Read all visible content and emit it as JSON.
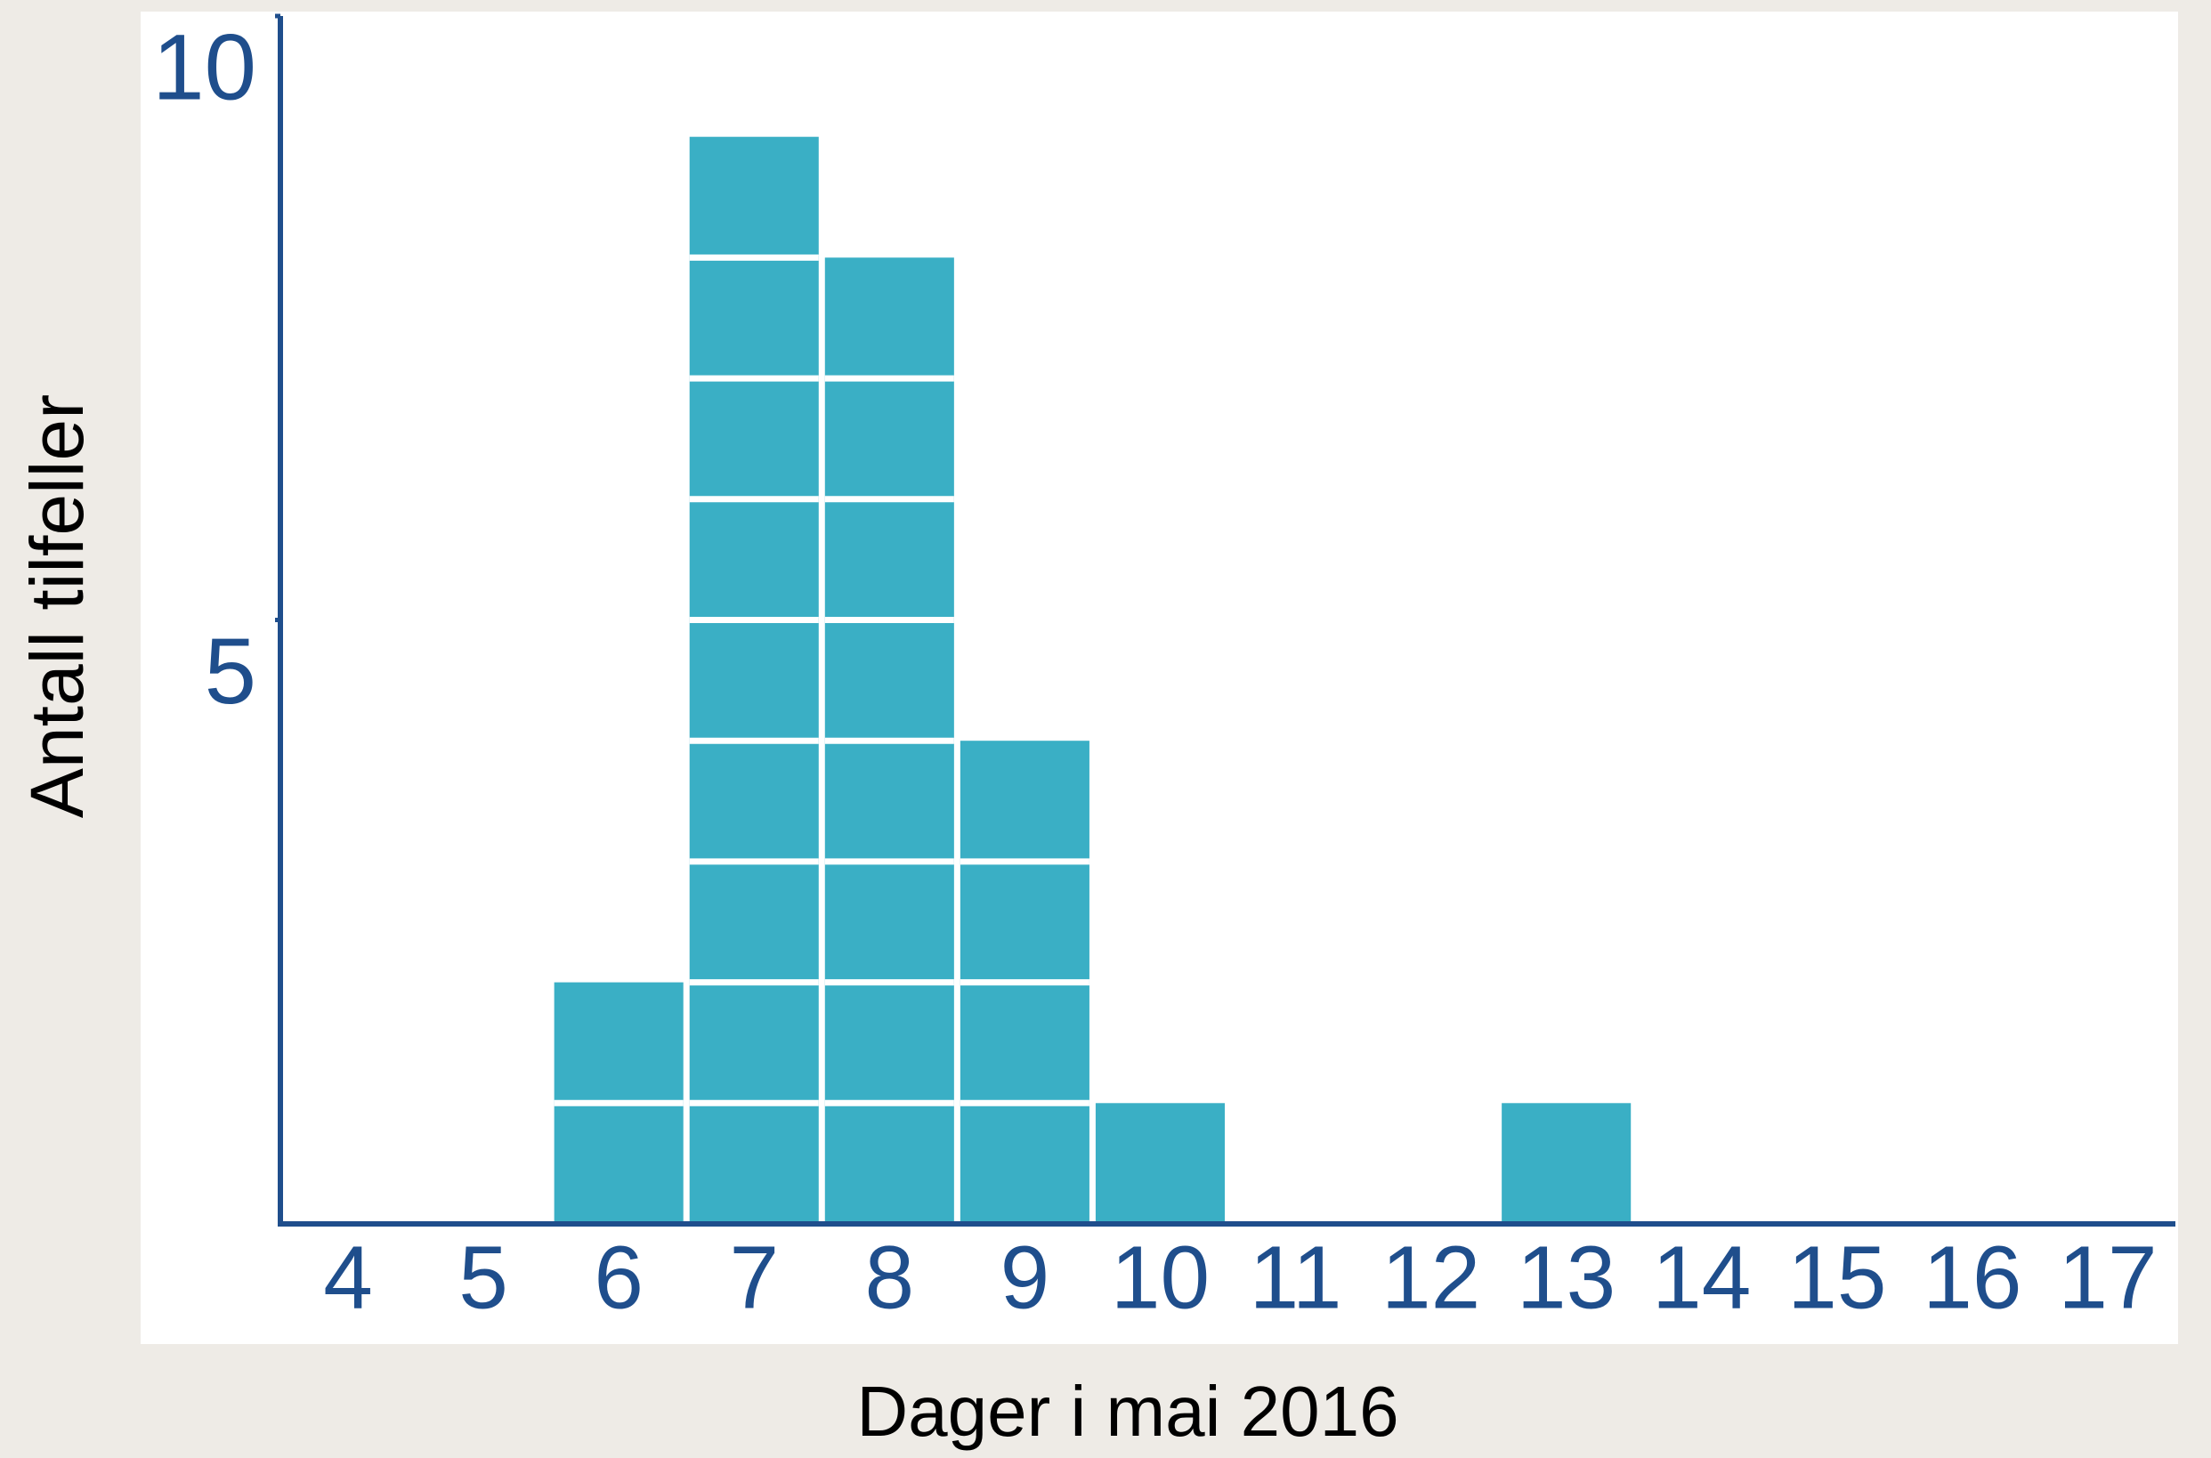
{
  "chart_data": {
    "type": "bar",
    "xlabel": "Dager i mai 2016",
    "ylabel": "Antall tilfeller",
    "categories": [
      "4",
      "5",
      "6",
      "7",
      "8",
      "9",
      "10",
      "11",
      "12",
      "13",
      "14",
      "15",
      "16",
      "17"
    ],
    "values": [
      0,
      0,
      2,
      9,
      8,
      4,
      1,
      0,
      0,
      1,
      0,
      0,
      0,
      0
    ],
    "color": "#3aafc5",
    "axis_color": "#1f4e8c",
    "ylim": [
      0,
      10
    ],
    "yticks": [
      5,
      10
    ],
    "grid": false
  }
}
